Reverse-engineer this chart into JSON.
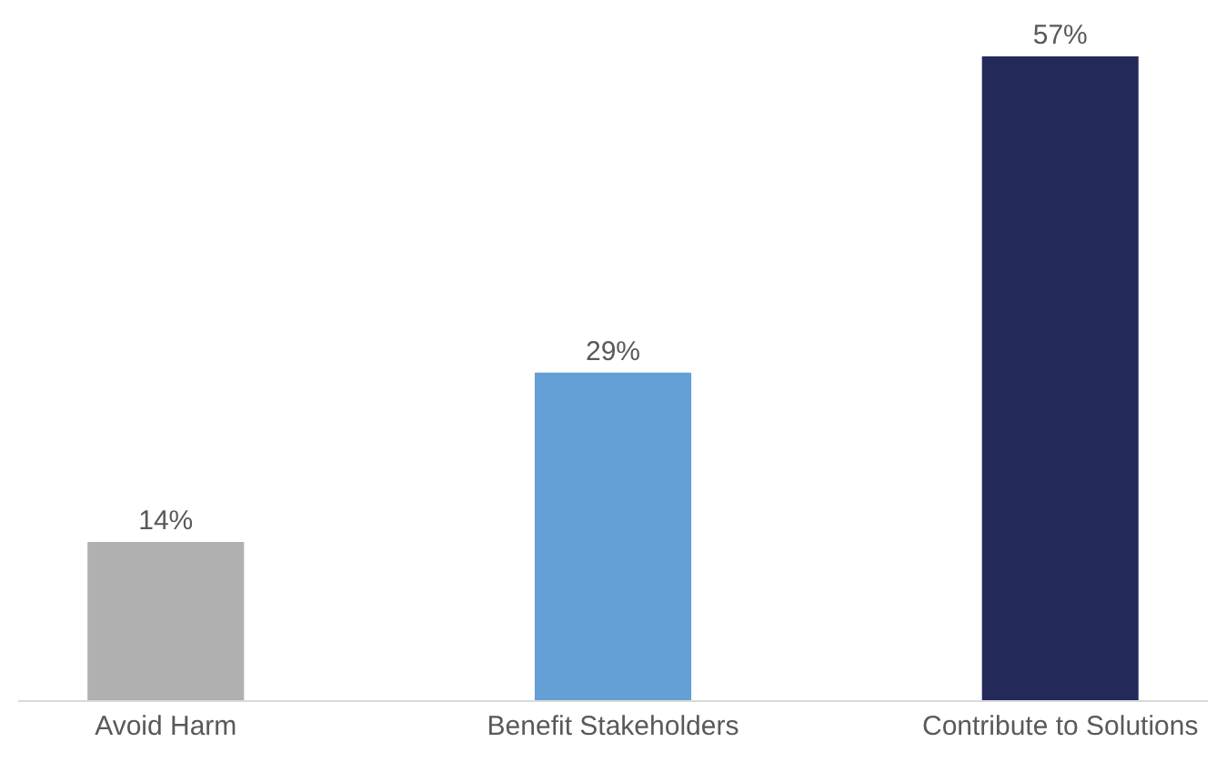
{
  "chart_data": {
    "type": "bar",
    "categories": [
      "Avoid Harm",
      "Benefit Stakeholders",
      "Contribute to Solutions"
    ],
    "values": [
      14,
      29,
      57
    ],
    "colors": [
      "#b0b0b0",
      "#649fd5",
      "#232a5a"
    ],
    "value_labels": [
      "14%",
      "29%",
      "57%"
    ]
  }
}
